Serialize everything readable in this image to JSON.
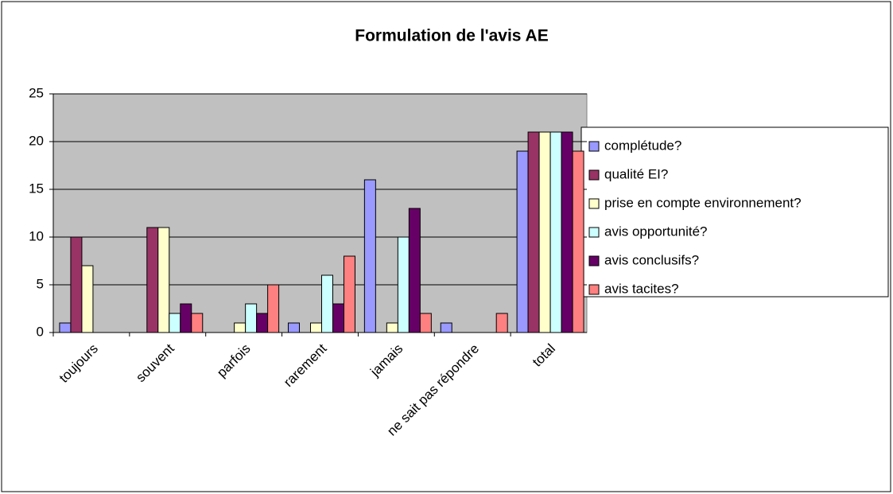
{
  "chart_data": {
    "type": "bar",
    "title": "Formulation de l'avis AE",
    "categories": [
      "toujours",
      "souvent",
      "parfois",
      "rarement",
      "jamais",
      "ne sait pas répondre",
      "total"
    ],
    "series": [
      {
        "name": "complétude?",
        "color": "#9999ff",
        "values": [
          1,
          0,
          0,
          1,
          16,
          1,
          19
        ]
      },
      {
        "name": "qualité EI?",
        "color": "#993366",
        "values": [
          10,
          11,
          0,
          0,
          0,
          0,
          21
        ]
      },
      {
        "name": "prise en compte environnement?",
        "color": "#ffffcc",
        "values": [
          7,
          11,
          1,
          1,
          1,
          0,
          21
        ]
      },
      {
        "name": "avis opportunité?",
        "color": "#ccffff",
        "values": [
          0,
          2,
          3,
          6,
          10,
          0,
          21
        ]
      },
      {
        "name": "avis conclusifs?",
        "color": "#660066",
        "values": [
          0,
          3,
          2,
          3,
          13,
          0,
          21
        ]
      },
      {
        "name": "avis tacites?",
        "color": "#ff8080",
        "values": [
          0,
          2,
          5,
          8,
          2,
          2,
          19
        ]
      }
    ],
    "ylim": [
      0,
      25
    ],
    "yticks": [
      0,
      5,
      10,
      15,
      20,
      25
    ],
    "grid": true,
    "legend": "right"
  }
}
